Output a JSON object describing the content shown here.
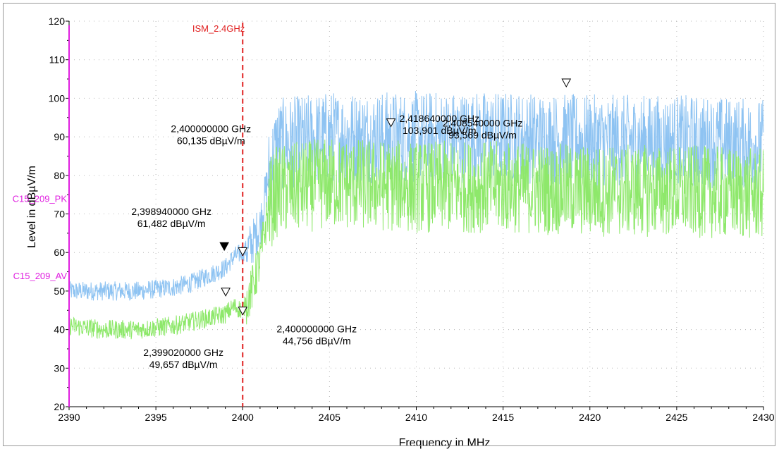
{
  "chart_data": {
    "type": "line",
    "title": "",
    "xlabel": "Frequency in MHz",
    "ylabel": "Level in dBµV/m",
    "xlim": [
      2390,
      2430
    ],
    "ylim": [
      20,
      120
    ],
    "xticks": [
      2390,
      2395,
      2400,
      2405,
      2410,
      2415,
      2420,
      2425,
      2430
    ],
    "yticks": [
      20,
      30,
      40,
      50,
      60,
      70,
      80,
      90,
      100,
      110,
      120
    ],
    "grid": true,
    "series": [
      {
        "name": "",
        "color": "#8ec3f2",
        "style": "dense-noise",
        "x": [
          2390,
          2392,
          2394,
          2396,
          2397,
          2398,
          2399,
          2399.5,
          2400,
          2400.5,
          2401,
          2401.5,
          2402,
          2405,
          2410,
          2415,
          2420,
          2425,
          2430
        ],
        "y": [
          50,
          50,
          50,
          51,
          52,
          54,
          56,
          59,
          60,
          62,
          67,
          80,
          88,
          90,
          90,
          90,
          89,
          89,
          88
        ]
      },
      {
        "name": "",
        "color": "#8ee86b",
        "style": "dense-noise",
        "x": [
          2390,
          2392,
          2394,
          2396,
          2397,
          2398,
          2399,
          2399.5,
          2400,
          2400.5,
          2401,
          2401.5,
          2402,
          2405,
          2410,
          2415,
          2420,
          2425,
          2430
        ],
        "y": [
          41,
          40,
          40,
          41,
          42,
          43,
          44,
          46,
          45,
          50,
          58,
          72,
          76,
          78,
          77,
          77,
          76,
          76,
          75
        ]
      }
    ],
    "limit_lines": [
      {
        "label": "C15_209_PK",
        "y": 74,
        "color": "#e020e0"
      },
      {
        "label": "C15_209_AV",
        "y": 54,
        "color": "#e020e0"
      }
    ],
    "vertical_markers": [
      {
        "label": "ISM_2.4GHz",
        "x": 2400,
        "color": "#e02020"
      }
    ],
    "markers": [
      {
        "x": 2398.94,
        "y": 61.482,
        "filled": true,
        "label_line1": "2,398940000 GHz",
        "label_line2": "61,482 dBµV/m"
      },
      {
        "x": 2400.0,
        "y": 60.135,
        "filled": false,
        "label_line1": "2,400000000 GHz",
        "label_line2": "60,135 dBµV/m"
      },
      {
        "x": 2418.64,
        "y": 103.901,
        "filled": false,
        "label_line1": "2,418640000 GHz",
        "label_line2": "103,901 dBµV/m"
      },
      {
        "x": 2399.02,
        "y": 49.657,
        "filled": false,
        "label_line1": "2,399020000 GHz",
        "label_line2": "49,657 dBµV/m"
      },
      {
        "x": 2400.0,
        "y": 44.756,
        "filled": false,
        "label_line1": "2,400000000 GHz",
        "label_line2": "44,756 dBµV/m"
      },
      {
        "x": 2408.54,
        "y": 93.569,
        "filled": false,
        "label_line1": "2,408540000 GHz",
        "label_line2": "93,569 dBµV/m"
      }
    ]
  }
}
